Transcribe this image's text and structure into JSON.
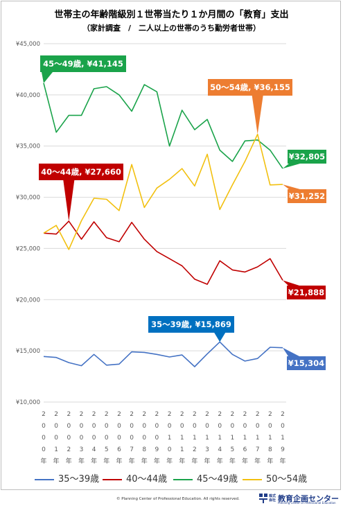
{
  "page": {
    "copyright": "© Planning Center of Professional Education. All rights reserved.",
    "logo_small": "株式会社",
    "logo_main": "教育企画センター",
    "logo_sub": "Planning Center of Professional Education"
  },
  "chart_data": {
    "type": "line",
    "title": "世帯主の年齢階級別１世帯当たり１か月間の「教育」支出",
    "subtitle": "（家計調査　/　二人以上の世帯のうち勤労者世帯）",
    "xlabel": "",
    "ylabel": "",
    "categories": [
      "2000年",
      "2001年",
      "2002年",
      "2003年",
      "2004年",
      "2005年",
      "2006年",
      "2007年",
      "2008年",
      "2009年",
      "2010年",
      "2011年",
      "2012年",
      "2013年",
      "2014年",
      "2015年",
      "2016年",
      "2017年",
      "2018年",
      "2019年"
    ],
    "ylim": [
      10000,
      45000
    ],
    "yticks": [
      10000,
      15000,
      20000,
      25000,
      30000,
      35000,
      40000,
      45000
    ],
    "ytick_labels": [
      "¥10,000",
      "¥15,000",
      "¥20,000",
      "¥25,000",
      "¥30,000",
      "¥35,000",
      "¥40,000",
      "¥45,000"
    ],
    "grid": true,
    "legend_position": "bottom",
    "series": [
      {
        "name": "35～39歳",
        "color": "#4472c4",
        "values": [
          14450,
          14350,
          13850,
          13550,
          14650,
          13600,
          13700,
          14900,
          14850,
          14650,
          14400,
          14600,
          13450,
          14700,
          15869,
          14650,
          14000,
          14250,
          15350,
          15304
        ]
      },
      {
        "name": "40～44歳",
        "color": "#c00000",
        "values": [
          26500,
          26400,
          27660,
          25900,
          27600,
          26050,
          25650,
          27550,
          25900,
          24700,
          24000,
          23300,
          22000,
          21500,
          23800,
          22900,
          22700,
          23200,
          24000,
          21888
        ]
      },
      {
        "name": "45～49歳",
        "color": "#1aa34a",
        "values": [
          41145,
          36350,
          38000,
          38000,
          40600,
          40800,
          40000,
          38400,
          41000,
          40300,
          35000,
          38500,
          36600,
          37600,
          34600,
          33500,
          35500,
          35600,
          34600,
          32805
        ]
      },
      {
        "name": "50～54歳",
        "color": "#f2c00f",
        "values": [
          26500,
          27250,
          24900,
          27700,
          29900,
          29800,
          28700,
          33200,
          29000,
          30900,
          31750,
          32800,
          31100,
          34200,
          28800,
          31200,
          33500,
          36155,
          31200,
          31252
        ]
      }
    ],
    "callouts": [
      {
        "text": "45～49歳, ¥41,145",
        "series": 2,
        "index": 0,
        "color": "#1aa34a"
      },
      {
        "text": "40～44歳, ¥27,660",
        "series": 1,
        "index": 2,
        "color": "#c00000"
      },
      {
        "text": "50～54歳, ¥36,155",
        "series": 3,
        "index": 17,
        "color": "#ed7d31"
      },
      {
        "text": "35～39歳, ¥15,869",
        "series": 0,
        "index": 14,
        "color": "#0070c0"
      },
      {
        "text": "¥32,805",
        "series": 2,
        "index": 19,
        "color": "#1aa34a"
      },
      {
        "text": "¥31,252",
        "series": 3,
        "index": 19,
        "color": "#ed7d31"
      },
      {
        "text": "¥21,888",
        "series": 1,
        "index": 19,
        "color": "#c00000"
      },
      {
        "text": "¥15,304",
        "series": 0,
        "index": 19,
        "color": "#4472c4"
      }
    ]
  }
}
